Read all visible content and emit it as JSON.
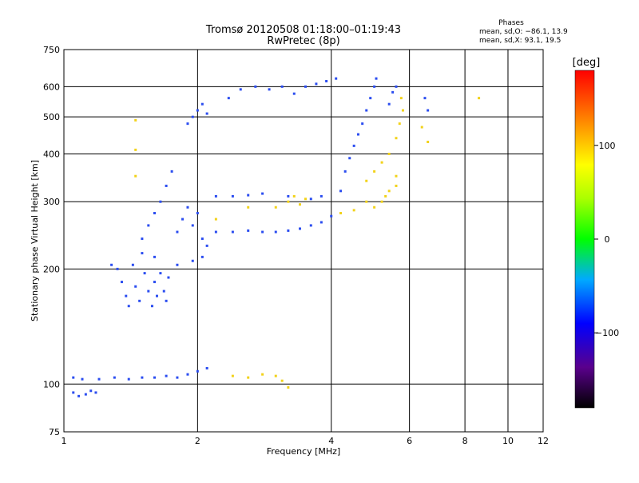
{
  "chart_data": {
    "type": "scatter",
    "title": "Tromsø 20120508 01:18:00–01:19:43",
    "subtitle": "RwPretec (8p)",
    "xlabel": "Frequency [MHz]",
    "ylabel": "Stationary phase Virtual Height [km]",
    "xscale": "log",
    "yscale": "log",
    "xlim": [
      1,
      12
    ],
    "ylim": [
      75,
      750
    ],
    "x_ticks": [
      1,
      2,
      4,
      6,
      8,
      10,
      12
    ],
    "y_ticks": [
      75,
      100,
      200,
      300,
      400,
      500,
      600,
      750
    ],
    "grid": true,
    "phases": {
      "heading": "Phases",
      "line_o": "mean, sd,O:  −86.1, 13.9",
      "line_x": "mean, sd,X:  93.1, 19.5"
    },
    "colorbar": {
      "label": "[deg]",
      "min": -180,
      "max": 180,
      "ticks": [
        -100,
        0,
        100
      ],
      "tick_labels": [
        "−100",
        "0",
        "100"
      ]
    },
    "series": [
      {
        "points": [
          [
            1.05,
            95
          ],
          [
            1.08,
            93
          ],
          [
            1.12,
            94
          ],
          [
            1.15,
            96
          ],
          [
            1.18,
            95
          ],
          [
            1.05,
            104
          ],
          [
            1.1,
            103
          ],
          [
            1.2,
            103
          ],
          [
            1.3,
            104
          ],
          [
            1.4,
            103
          ],
          [
            1.5,
            104
          ],
          [
            1.6,
            104
          ],
          [
            1.7,
            105
          ],
          [
            1.8,
            104
          ],
          [
            1.9,
            106
          ],
          [
            2.0,
            108
          ],
          [
            2.1,
            110
          ],
          [
            1.28,
            205
          ],
          [
            1.32,
            200
          ],
          [
            1.35,
            185
          ],
          [
            1.38,
            170
          ],
          [
            1.4,
            160
          ],
          [
            1.43,
            205
          ],
          [
            1.45,
            180
          ],
          [
            1.48,
            165
          ],
          [
            1.5,
            220
          ],
          [
            1.52,
            195
          ],
          [
            1.55,
            175
          ],
          [
            1.58,
            160
          ],
          [
            1.6,
            185
          ],
          [
            1.62,
            170
          ],
          [
            1.65,
            195
          ],
          [
            1.68,
            175
          ],
          [
            1.7,
            165
          ],
          [
            1.72,
            190
          ],
          [
            1.5,
            240
          ],
          [
            1.55,
            260
          ],
          [
            1.6,
            280
          ],
          [
            1.65,
            300
          ],
          [
            1.7,
            330
          ],
          [
            1.75,
            360
          ],
          [
            1.8,
            250
          ],
          [
            1.85,
            270
          ],
          [
            1.9,
            290
          ],
          [
            1.95,
            260
          ],
          [
            2.0,
            280
          ],
          [
            2.05,
            240
          ],
          [
            2.1,
            230
          ],
          [
            1.6,
            215
          ],
          [
            1.8,
            205
          ],
          [
            1.95,
            210
          ],
          [
            2.05,
            215
          ],
          [
            2.2,
            250
          ],
          [
            2.4,
            250
          ],
          [
            2.6,
            252
          ],
          [
            2.8,
            250
          ],
          [
            3.0,
            250
          ],
          [
            3.2,
            252
          ],
          [
            3.4,
            255
          ],
          [
            3.6,
            260
          ],
          [
            3.8,
            265
          ],
          [
            4.0,
            275
          ],
          [
            2.2,
            310
          ],
          [
            2.4,
            310
          ],
          [
            2.6,
            312
          ],
          [
            2.8,
            315
          ],
          [
            3.2,
            310
          ],
          [
            3.6,
            305
          ],
          [
            3.8,
            310
          ],
          [
            4.2,
            320
          ],
          [
            1.9,
            480
          ],
          [
            1.95,
            500
          ],
          [
            2.0,
            520
          ],
          [
            2.05,
            540
          ],
          [
            2.1,
            510
          ],
          [
            2.35,
            560
          ],
          [
            2.5,
            590
          ],
          [
            2.7,
            600
          ],
          [
            2.9,
            590
          ],
          [
            3.1,
            600
          ],
          [
            3.3,
            575
          ],
          [
            3.5,
            600
          ],
          [
            3.7,
            610
          ],
          [
            3.9,
            620
          ],
          [
            4.1,
            630
          ],
          [
            4.3,
            360
          ],
          [
            4.4,
            390
          ],
          [
            4.5,
            420
          ],
          [
            4.6,
            450
          ],
          [
            4.7,
            480
          ],
          [
            4.8,
            520
          ],
          [
            4.9,
            560
          ],
          [
            5.0,
            600
          ],
          [
            5.05,
            630
          ],
          [
            5.4,
            540
          ],
          [
            5.5,
            580
          ],
          [
            5.6,
            600
          ],
          [
            6.5,
            560
          ],
          [
            6.6,
            520
          ]
        ]
      },
      {
        "points": [
          [
            2.4,
            105
          ],
          [
            2.6,
            104
          ],
          [
            2.8,
            106
          ],
          [
            3.0,
            105
          ],
          [
            3.1,
            102
          ],
          [
            3.2,
            98
          ],
          [
            3.0,
            290
          ],
          [
            3.2,
            300
          ],
          [
            3.3,
            310
          ],
          [
            3.4,
            295
          ],
          [
            3.5,
            305
          ],
          [
            4.2,
            280
          ],
          [
            4.5,
            285
          ],
          [
            4.8,
            300
          ],
          [
            5.0,
            290
          ],
          [
            5.3,
            310
          ],
          [
            5.6,
            330
          ],
          [
            4.8,
            340
          ],
          [
            5.0,
            360
          ],
          [
            5.2,
            380
          ],
          [
            5.4,
            400
          ],
          [
            5.6,
            440
          ],
          [
            5.7,
            480
          ],
          [
            5.8,
            520
          ],
          [
            5.75,
            560
          ],
          [
            5.2,
            300
          ],
          [
            5.4,
            320
          ],
          [
            5.6,
            350
          ],
          [
            6.4,
            470
          ],
          [
            6.6,
            430
          ],
          [
            8.6,
            560
          ],
          [
            1.45,
            490
          ],
          [
            1.45,
            410
          ],
          [
            1.45,
            350
          ],
          [
            2.2,
            270
          ],
          [
            2.6,
            290
          ]
        ]
      }
    ]
  }
}
